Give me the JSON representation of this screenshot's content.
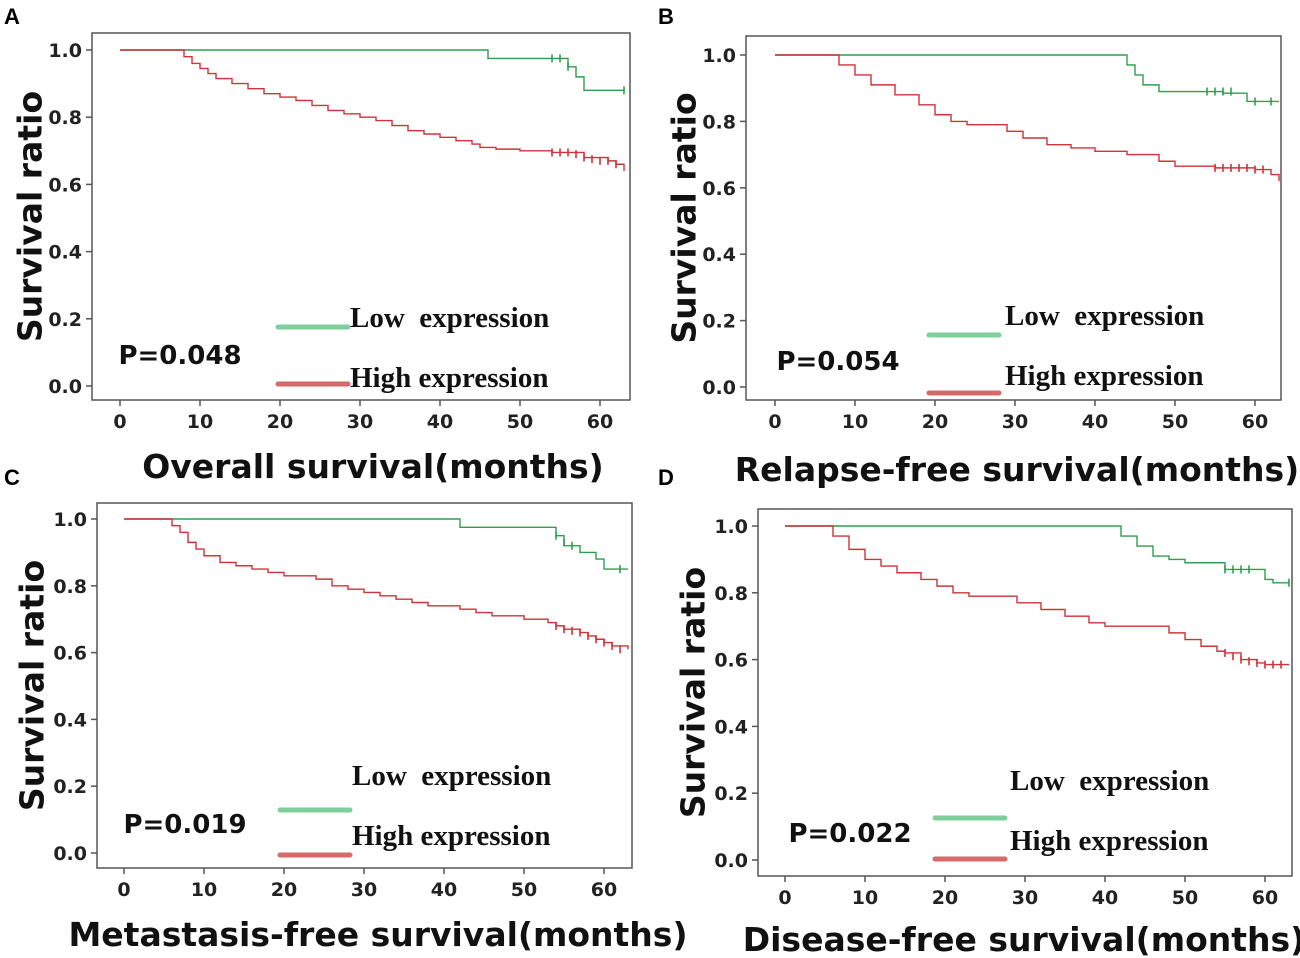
{
  "colors": {
    "low": "#2e9e4f",
    "high": "#d0323a",
    "low_legend": "#7fcf9c",
    "high_legend": "#d46a6a",
    "frame": "#555555"
  },
  "chart_data": [
    {
      "panel": "A",
      "type": "line",
      "xlabel": "Overall survival(months)",
      "ylabel": "Survival ratio",
      "xlim": [
        0,
        63
      ],
      "ylim": [
        0,
        1
      ],
      "xticks": [
        "0",
        "10",
        "20",
        "30",
        "40",
        "50",
        "60"
      ],
      "yticks": [
        "0.0",
        "0.2",
        "0.4",
        "0.6",
        "0.8",
        "1.0"
      ],
      "p_value": "P=0.048",
      "legend": [
        "Low  expression",
        "High expression"
      ],
      "series": [
        {
          "name": "Low  expression",
          "steps": [
            [
              0,
              1
            ],
            [
              46,
              0.975
            ],
            [
              56,
              0.95
            ],
            [
              57,
              0.92
            ],
            [
              58,
              0.88
            ],
            [
              63,
              0.88
            ]
          ],
          "censored": [
            [
              54,
              0.975
            ],
            [
              55,
              0.975
            ],
            [
              56,
              0.95
            ],
            [
              63,
              0.88
            ]
          ]
        },
        {
          "name": "High expression",
          "steps": [
            [
              0,
              1
            ],
            [
              8,
              0.98
            ],
            [
              9,
              0.96
            ],
            [
              10,
              0.945
            ],
            [
              11,
              0.93
            ],
            [
              12,
              0.915
            ],
            [
              14,
              0.9
            ],
            [
              16,
              0.885
            ],
            [
              18,
              0.87
            ],
            [
              20,
              0.86
            ],
            [
              22,
              0.85
            ],
            [
              24,
              0.835
            ],
            [
              26,
              0.82
            ],
            [
              28,
              0.81
            ],
            [
              30,
              0.8
            ],
            [
              32,
              0.79
            ],
            [
              34,
              0.775
            ],
            [
              36,
              0.76
            ],
            [
              38,
              0.75
            ],
            [
              40,
              0.74
            ],
            [
              42,
              0.73
            ],
            [
              44,
              0.72
            ],
            [
              45,
              0.71
            ],
            [
              47,
              0.705
            ],
            [
              50,
              0.7
            ],
            [
              54,
              0.695
            ],
            [
              58,
              0.68
            ],
            [
              61,
              0.67
            ],
            [
              62,
              0.66
            ],
            [
              63,
              0.64
            ]
          ],
          "censored": [
            [
              54,
              0.695
            ],
            [
              55,
              0.695
            ],
            [
              56,
              0.695
            ],
            [
              57,
              0.69
            ],
            [
              58,
              0.68
            ],
            [
              59,
              0.675
            ],
            [
              60,
              0.67
            ],
            [
              61,
              0.67
            ],
            [
              62,
              0.66
            ]
          ]
        }
      ]
    },
    {
      "panel": "B",
      "type": "line",
      "xlabel": "Relapse-free survival(months)",
      "ylabel": "Survival ratio",
      "xlim": [
        0,
        63
      ],
      "ylim": [
        0,
        1
      ],
      "xticks": [
        "0",
        "10",
        "20",
        "30",
        "40",
        "50",
        "60"
      ],
      "yticks": [
        "0.0",
        "0.2",
        "0.4",
        "0.6",
        "0.8",
        "1.0"
      ],
      "p_value": "P=0.054",
      "legend": [
        "Low  expression",
        "High expression"
      ],
      "series": [
        {
          "name": "Low  expression",
          "steps": [
            [
              0,
              1
            ],
            [
              44,
              0.97
            ],
            [
              45,
              0.94
            ],
            [
              46,
              0.91
            ],
            [
              48,
              0.89
            ],
            [
              56,
              0.885
            ],
            [
              59,
              0.86
            ],
            [
              63,
              0.86
            ]
          ],
          "censored": [
            [
              54,
              0.89
            ],
            [
              55,
              0.89
            ],
            [
              56,
              0.89
            ],
            [
              57,
              0.89
            ],
            [
              60,
              0.86
            ],
            [
              62,
              0.86
            ]
          ]
        },
        {
          "name": "High expression",
          "steps": [
            [
              0,
              1
            ],
            [
              8,
              0.97
            ],
            [
              10,
              0.94
            ],
            [
              12,
              0.91
            ],
            [
              15,
              0.88
            ],
            [
              18,
              0.85
            ],
            [
              20,
              0.82
            ],
            [
              22,
              0.8
            ],
            [
              24,
              0.79
            ],
            [
              27,
              0.79
            ],
            [
              29,
              0.77
            ],
            [
              31,
              0.75
            ],
            [
              34,
              0.73
            ],
            [
              37,
              0.72
            ],
            [
              40,
              0.71
            ],
            [
              44,
              0.7
            ],
            [
              48,
              0.68
            ],
            [
              50,
              0.665
            ],
            [
              55,
              0.66
            ],
            [
              60,
              0.655
            ],
            [
              62,
              0.64
            ],
            [
              63,
              0.62
            ]
          ],
          "censored": [
            [
              55,
              0.66
            ],
            [
              56,
              0.66
            ],
            [
              57,
              0.66
            ],
            [
              58,
              0.66
            ],
            [
              59,
              0.66
            ],
            [
              60,
              0.655
            ],
            [
              61,
              0.655
            ]
          ]
        }
      ]
    },
    {
      "panel": "C",
      "type": "line",
      "xlabel": "Metastasis-free survival(months)",
      "ylabel": "Survival ratio",
      "xlim": [
        0,
        63
      ],
      "ylim": [
        0,
        1
      ],
      "xticks": [
        "0",
        "10",
        "20",
        "30",
        "40",
        "50",
        "60"
      ],
      "yticks": [
        "0.0",
        "0.2",
        "0.4",
        "0.6",
        "0.8",
        "1.0"
      ],
      "p_value": "P=0.019",
      "legend": [
        "Low  expression",
        "High expression"
      ],
      "series": [
        {
          "name": "Low  expression",
          "steps": [
            [
              0,
              1
            ],
            [
              42,
              0.975
            ],
            [
              54,
              0.95
            ],
            [
              55,
              0.92
            ],
            [
              57,
              0.9
            ],
            [
              59,
              0.88
            ],
            [
              60,
              0.85
            ],
            [
              63,
              0.85
            ]
          ],
          "censored": [
            [
              54,
              0.95
            ],
            [
              55,
              0.93
            ],
            [
              56,
              0.92
            ],
            [
              62,
              0.85
            ]
          ]
        },
        {
          "name": "High expression",
          "steps": [
            [
              0,
              1
            ],
            [
              6,
              0.98
            ],
            [
              7,
              0.96
            ],
            [
              8,
              0.93
            ],
            [
              9,
              0.91
            ],
            [
              10,
              0.89
            ],
            [
              12,
              0.87
            ],
            [
              14,
              0.86
            ],
            [
              16,
              0.85
            ],
            [
              18,
              0.84
            ],
            [
              20,
              0.83
            ],
            [
              24,
              0.82
            ],
            [
              26,
              0.8
            ],
            [
              28,
              0.79
            ],
            [
              30,
              0.78
            ],
            [
              32,
              0.77
            ],
            [
              34,
              0.76
            ],
            [
              36,
              0.75
            ],
            [
              38,
              0.74
            ],
            [
              42,
              0.73
            ],
            [
              44,
              0.72
            ],
            [
              46,
              0.71
            ],
            [
              50,
              0.7
            ],
            [
              53,
              0.69
            ],
            [
              54,
              0.68
            ],
            [
              55,
              0.67
            ],
            [
              57,
              0.66
            ],
            [
              58,
              0.65
            ],
            [
              59,
              0.64
            ],
            [
              60,
              0.63
            ],
            [
              61,
              0.62
            ],
            [
              63,
              0.61
            ]
          ],
          "censored": [
            [
              54,
              0.68
            ],
            [
              55,
              0.67
            ],
            [
              56,
              0.665
            ],
            [
              57,
              0.66
            ],
            [
              58,
              0.65
            ],
            [
              59,
              0.64
            ],
            [
              60,
              0.63
            ],
            [
              61,
              0.62
            ],
            [
              62,
              0.61
            ]
          ]
        }
      ]
    },
    {
      "panel": "D",
      "type": "line",
      "xlabel": "Disease-free survival(months)",
      "ylabel": "Survival ratio",
      "xlim": [
        0,
        63
      ],
      "ylim": [
        0,
        1
      ],
      "xticks": [
        "0",
        "10",
        "20",
        "30",
        "40",
        "50",
        "60"
      ],
      "yticks": [
        "0.0",
        "0.2",
        "0.4",
        "0.6",
        "0.8",
        "1.0"
      ],
      "p_value": "P=0.022",
      "legend": [
        "Low  expression",
        "High expression"
      ],
      "series": [
        {
          "name": "Low  expression",
          "steps": [
            [
              0,
              1
            ],
            [
              42,
              0.97
            ],
            [
              44,
              0.94
            ],
            [
              46,
              0.91
            ],
            [
              48,
              0.9
            ],
            [
              50,
              0.89
            ],
            [
              55,
              0.87
            ],
            [
              60,
              0.84
            ],
            [
              61,
              0.83
            ],
            [
              63,
              0.83
            ]
          ],
          "censored": [
            [
              55,
              0.87
            ],
            [
              56,
              0.87
            ],
            [
              57,
              0.87
            ],
            [
              58,
              0.87
            ],
            [
              63,
              0.83
            ]
          ]
        },
        {
          "name": "High expression",
          "steps": [
            [
              0,
              1
            ],
            [
              6,
              0.97
            ],
            [
              8,
              0.93
            ],
            [
              10,
              0.9
            ],
            [
              12,
              0.88
            ],
            [
              14,
              0.86
            ],
            [
              17,
              0.84
            ],
            [
              19,
              0.82
            ],
            [
              21,
              0.8
            ],
            [
              23,
              0.79
            ],
            [
              27,
              0.79
            ],
            [
              29,
              0.77
            ],
            [
              32,
              0.75
            ],
            [
              35,
              0.73
            ],
            [
              38,
              0.71
            ],
            [
              40,
              0.7
            ],
            [
              43,
              0.7
            ],
            [
              48,
              0.68
            ],
            [
              50,
              0.66
            ],
            [
              52,
              0.64
            ],
            [
              54,
              0.625
            ],
            [
              55,
              0.62
            ],
            [
              57,
              0.6
            ],
            [
              59,
              0.59
            ],
            [
              60,
              0.585
            ],
            [
              63,
              0.585
            ]
          ],
          "censored": [
            [
              55,
              0.62
            ],
            [
              56,
              0.61
            ],
            [
              57,
              0.6
            ],
            [
              58,
              0.595
            ],
            [
              59,
              0.59
            ],
            [
              60,
              0.585
            ],
            [
              61,
              0.585
            ],
            [
              62,
              0.585
            ]
          ]
        }
      ]
    }
  ]
}
